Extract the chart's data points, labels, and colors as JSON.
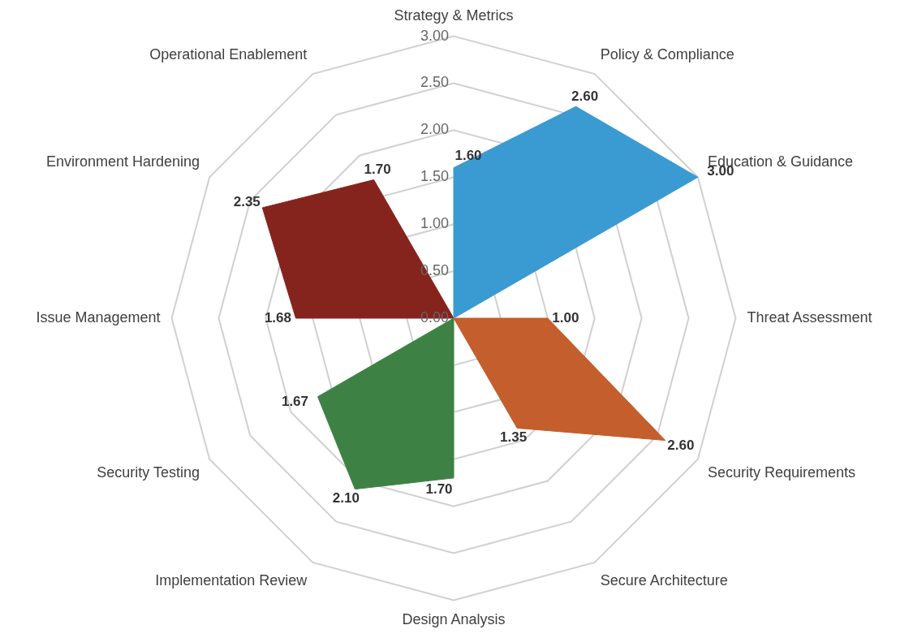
{
  "chart_data": {
    "type": "radar",
    "categories": [
      "Strategy & Metrics",
      "Policy & Compliance",
      "Education & Guidance",
      "Threat Assessment",
      "Security Requirements",
      "Secure Architecture",
      "Design Analysis",
      "Implementation Review",
      "Security Testing",
      "Issue Management",
      "Environment Hardening",
      "Operational Enablement"
    ],
    "ylim": [
      0,
      3
    ],
    "yticks": [
      {
        "value": 0,
        "label": "0.00"
      },
      {
        "value": 0.5,
        "label": "0.50"
      },
      {
        "value": 1,
        "label": "1.00"
      },
      {
        "value": 1.5,
        "label": "1.50"
      },
      {
        "value": 2,
        "label": "2.00"
      },
      {
        "value": 2.5,
        "label": "2.50"
      },
      {
        "value": 3,
        "label": "3.00"
      }
    ],
    "grid": true,
    "legend": false,
    "marker": "none",
    "series": [
      {
        "color": "#3a9ad2",
        "values": [
          1.6,
          2.6,
          3.0,
          0,
          0,
          0,
          0,
          0,
          0,
          0,
          0,
          0
        ],
        "value_labels": [
          "1.60",
          "2.60",
          "3.00",
          null,
          null,
          null,
          null,
          null,
          null,
          null,
          null,
          null
        ]
      },
      {
        "color": "#c45e2c",
        "values": [
          0,
          0,
          0,
          1.0,
          2.6,
          1.35,
          0,
          0,
          0,
          0,
          0,
          0
        ],
        "value_labels": [
          null,
          null,
          null,
          "1.00",
          "2.60",
          "1.35",
          null,
          null,
          null,
          null,
          null,
          null
        ]
      },
      {
        "color": "#3d8244",
        "values": [
          0,
          0,
          0,
          0,
          0,
          0,
          1.7,
          2.1,
          1.67,
          0,
          0,
          0
        ],
        "value_labels": [
          null,
          null,
          null,
          null,
          null,
          null,
          "1.70",
          "2.10",
          "1.67",
          null,
          null,
          null
        ]
      },
      {
        "color": "#85231d",
        "values": [
          0,
          0,
          0,
          0,
          0,
          0,
          0,
          0,
          0,
          1.68,
          2.35,
          1.7
        ],
        "value_labels": [
          null,
          null,
          null,
          null,
          null,
          null,
          null,
          null,
          null,
          "1.68",
          "2.35",
          "1.70"
        ]
      }
    ]
  }
}
